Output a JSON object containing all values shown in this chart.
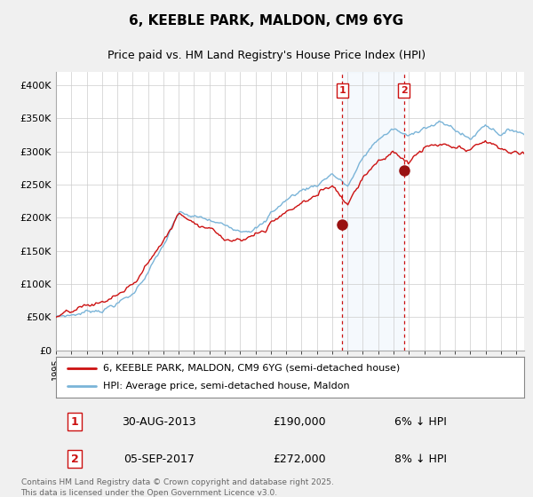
{
  "title": "6, KEEBLE PARK, MALDON, CM9 6YG",
  "subtitle": "Price paid vs. HM Land Registry's House Price Index (HPI)",
  "legend_line1": "6, KEEBLE PARK, MALDON, CM9 6YG (semi-detached house)",
  "legend_line2": "HPI: Average price, semi-detached house, Maldon",
  "annotation1_label": "1",
  "annotation1_date": "30-AUG-2013",
  "annotation1_price": "£190,000",
  "annotation1_hpi": "6% ↓ HPI",
  "annotation2_label": "2",
  "annotation2_date": "05-SEP-2017",
  "annotation2_price": "£272,000",
  "annotation2_hpi": "8% ↓ HPI",
  "annotation1_year": 2013.67,
  "annotation2_year": 2017.67,
  "purchase1_price": 190000,
  "purchase2_price": 272000,
  "hpi_color": "#7ab4d8",
  "price_color": "#cc1111",
  "point_color": "#991111",
  "bg_color": "#f0f0f0",
  "plot_bg": "#ffffff",
  "band_color": "#d8eaf8",
  "footer": "Contains HM Land Registry data © Crown copyright and database right 2025.\nThis data is licensed under the Open Government Licence v3.0.",
  "ylim": [
    0,
    420000
  ],
  "yticks": [
    0,
    50000,
    100000,
    150000,
    200000,
    250000,
    300000,
    350000,
    400000
  ],
  "ytick_labels": [
    "£0",
    "£50K",
    "£100K",
    "£150K",
    "£200K",
    "£250K",
    "£300K",
    "£350K",
    "£400K"
  ],
  "xlim_start": 1995,
  "xlim_end": 2025.5
}
